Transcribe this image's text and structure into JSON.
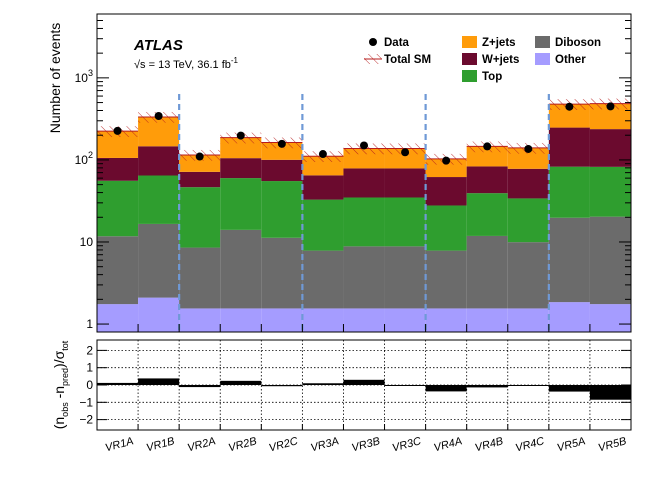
{
  "chart_data": {
    "type": "bar",
    "experiment": "ATLAS",
    "energy_label": "√s = 13 TeV, 36.1 fb",
    "energy_superscript": "-1",
    "ylabel": "Number of events",
    "ratio_ylabel": "(n_obs - n_pred)/σ_tot",
    "ratio_ylabel_parts": {
      "open": "(n",
      "obs": "obs",
      "minus": " -n",
      "pred": "pred",
      "close": ")/σ",
      "tot": "tot"
    },
    "y_scale": "log",
    "ylim": [
      0.8,
      6000
    ],
    "y_ticks": [
      {
        "value": 1,
        "label": "1"
      },
      {
        "value": 10,
        "label": "10"
      },
      {
        "value": 100,
        "label": "10",
        "sup": "2"
      },
      {
        "value": 1000,
        "label": "10",
        "sup": "3"
      }
    ],
    "ratio_ylim": [
      -2.6,
      2.6
    ],
    "ratio_ticks": [
      {
        "value": 2,
        "label": "2"
      },
      {
        "value": 1,
        "label": "1"
      },
      {
        "value": 0,
        "label": "0"
      },
      {
        "value": -1,
        "label": "−1"
      },
      {
        "value": -2,
        "label": "−2"
      }
    ],
    "categories": [
      "VR1A",
      "VR1B",
      "VR2A",
      "VR2B",
      "VR2C",
      "VR3A",
      "VR3B",
      "VR3C",
      "VR4A",
      "VR4B",
      "VR4C",
      "VR5A",
      "VR5B"
    ],
    "region_separators_after": [
      "VR1B",
      "VR2C",
      "VR3C",
      "VR4C"
    ],
    "series": [
      {
        "name": "Other",
        "color": "#a59cff",
        "values": [
          0.95,
          1.3,
          0.75,
          0.75,
          0.75,
          0.75,
          0.75,
          0.75,
          0.75,
          0.75,
          0.75,
          1.05,
          0.95
        ]
      },
      {
        "name": "Diboson",
        "color": "#6b6b6b",
        "values": [
          10,
          14.5,
          7,
          12.5,
          9.7,
          6.3,
          7.3,
          7.3,
          6.3,
          10.3,
          8.4,
          17.9,
          18.6
        ]
      },
      {
        "name": "Top",
        "color": "#2f9e2f",
        "values": [
          44,
          48,
          38,
          46,
          44,
          25,
          26,
          26,
          20,
          27.5,
          24,
          63,
          62
        ]
      },
      {
        "name": "W+jets",
        "color": "#6b0a2e",
        "values": [
          50,
          82,
          25,
          45,
          45,
          32,
          44,
          44,
          34,
          44,
          44,
          165,
          155
        ]
      },
      {
        "name": "Z+jets",
        "color": "#ff9c0a",
        "values": [
          119,
          188,
          44,
          83,
          63,
          47,
          60,
          60,
          42,
          63,
          63,
          230,
          249
        ]
      }
    ],
    "total_sm": [
      224,
      334,
      115,
      187,
      163,
      111,
      138,
      138,
      103,
      146,
      140,
      478,
      486
    ],
    "data": [
      226,
      343,
      110,
      198,
      157,
      118,
      150,
      124,
      98,
      146,
      136,
      445,
      449
    ],
    "ratio": [
      0.12,
      0.38,
      -0.12,
      0.24,
      -0.07,
      0.1,
      0.3,
      -0.04,
      -0.37,
      -0.14,
      -0.01,
      -0.38,
      -0.85
    ],
    "legend": [
      {
        "name": "Data",
        "marker": "dot"
      },
      {
        "name": "Total SM",
        "marker": "hatch"
      },
      {
        "name": "Z+jets",
        "color": "#ff9c0a"
      },
      {
        "name": "W+jets",
        "color": "#6b0a2e"
      },
      {
        "name": "Top",
        "color": "#2f9e2f"
      },
      {
        "name": "Diboson",
        "color": "#6b6b6b"
      },
      {
        "name": "Other",
        "color": "#a59cff"
      }
    ],
    "colors": {
      "separator": "#6f99d6",
      "hatch": "#b71c1c"
    }
  }
}
